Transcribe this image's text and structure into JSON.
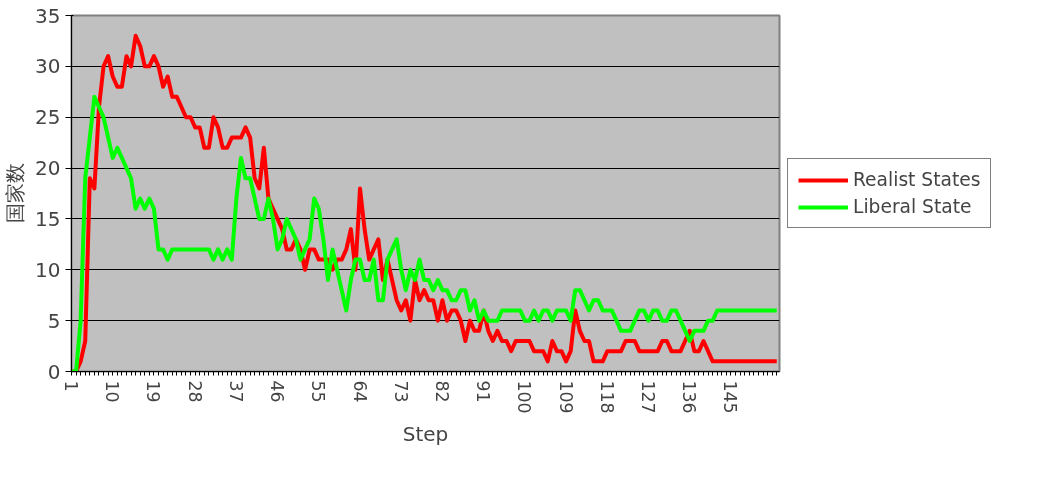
{
  "chart_data": {
    "type": "line",
    "xlabel": "Step",
    "ylabel": "国家数",
    "categories": [
      "1",
      null,
      null,
      null,
      null,
      null,
      null,
      null,
      null,
      "10",
      null,
      null,
      null,
      null,
      null,
      null,
      null,
      null,
      "19",
      null,
      null,
      null,
      null,
      null,
      null,
      null,
      null,
      "28",
      null,
      null,
      null,
      null,
      null,
      null,
      null,
      null,
      "37",
      null,
      null,
      null,
      null,
      null,
      null,
      null,
      null,
      "46",
      null,
      null,
      null,
      null,
      null,
      null,
      null,
      null,
      "55",
      null,
      null,
      null,
      null,
      null,
      null,
      null,
      null,
      "64",
      null,
      null,
      null,
      null,
      null,
      null,
      null,
      null,
      "73",
      null,
      null,
      null,
      null,
      null,
      null,
      null,
      null,
      "82",
      null,
      null,
      null,
      null,
      null,
      null,
      null,
      null,
      "91",
      null,
      null,
      null,
      null,
      null,
      null,
      null,
      null,
      "100",
      null,
      null,
      null,
      null,
      null,
      null,
      null,
      null,
      "109",
      null,
      null,
      null,
      null,
      null,
      null,
      null,
      null,
      "118",
      null,
      null,
      null,
      null,
      null,
      null,
      null,
      null,
      "127",
      null,
      null,
      null,
      null,
      null,
      null,
      null,
      null,
      "136",
      null,
      null,
      null,
      null,
      null,
      null,
      null,
      null,
      "145",
      null,
      null,
      null,
      null,
      null,
      null,
      null,
      null,
      null,
      null
    ],
    "series": [
      {
        "name": "Realist States",
        "color": "#ff0000",
        "values": [
          0,
          0,
          1,
          3,
          19,
          18,
          26,
          30,
          31,
          29,
          28,
          28,
          31,
          30,
          33,
          32,
          30,
          30,
          31,
          30,
          28,
          29,
          27,
          27,
          26,
          25,
          25,
          24,
          24,
          22,
          22,
          25,
          24,
          22,
          22,
          23,
          23,
          23,
          24,
          23,
          19,
          18,
          22,
          17,
          16,
          15,
          14,
          12,
          12,
          13,
          12,
          10,
          12,
          12,
          11,
          11,
          11,
          10,
          11,
          11,
          12,
          14,
          10,
          18,
          14,
          11,
          12,
          13,
          9,
          11,
          9,
          7,
          6,
          7,
          5,
          9,
          7,
          8,
          7,
          7,
          5,
          7,
          5,
          6,
          6,
          5,
          3,
          5,
          4,
          4,
          6,
          4,
          3,
          4,
          3,
          3,
          2,
          3,
          3,
          3,
          3,
          2,
          2,
          2,
          1,
          3,
          2,
          2,
          1,
          2,
          6,
          4,
          3,
          3,
          1,
          1,
          1,
          2,
          2,
          2,
          2,
          3,
          3,
          3,
          2,
          2,
          2,
          2,
          2,
          3,
          3,
          2,
          2,
          2,
          3,
          4,
          2,
          2,
          3,
          2,
          1,
          1,
          1,
          1,
          1,
          1,
          1,
          1,
          1,
          1,
          1,
          1,
          1,
          1,
          1
        ]
      },
      {
        "name": "Liberal State",
        "color": "#00ff00",
        "values": [
          0,
          0,
          5,
          19,
          23,
          27,
          26,
          25,
          23,
          21,
          22,
          21,
          20,
          19,
          16,
          17,
          16,
          17,
          16,
          12,
          12,
          11,
          12,
          12,
          12,
          12,
          12,
          12,
          12,
          12,
          12,
          11,
          12,
          11,
          12,
          11,
          17,
          21,
          19,
          19,
          17,
          15,
          15,
          17,
          15,
          12,
          13,
          15,
          14,
          13,
          11,
          12,
          13,
          17,
          16,
          13,
          9,
          12,
          10,
          8,
          6,
          9,
          11,
          11,
          9,
          9,
          11,
          7,
          7,
          11,
          12,
          13,
          10,
          8,
          10,
          9,
          11,
          9,
          9,
          8,
          9,
          8,
          8,
          7,
          7,
          8,
          8,
          6,
          7,
          5,
          6,
          5,
          5,
          5,
          6,
          6,
          6,
          6,
          6,
          5,
          5,
          6,
          5,
          6,
          6,
          5,
          6,
          6,
          6,
          5,
          8,
          8,
          7,
          6,
          7,
          7,
          6,
          6,
          6,
          5,
          4,
          4,
          4,
          5,
          6,
          6,
          5,
          6,
          6,
          5,
          5,
          6,
          6,
          5,
          4,
          3,
          4,
          4,
          4,
          5,
          5,
          6,
          6,
          6,
          6,
          6,
          6,
          6,
          6,
          6,
          6,
          6,
          6,
          6,
          6
        ]
      }
    ],
    "ylim": [
      0,
      35
    ],
    "yticks": [
      0,
      5,
      10,
      15,
      20,
      25,
      30,
      35
    ],
    "grid": "y",
    "legend": "right",
    "marker": "none",
    "line_style": "solid"
  }
}
